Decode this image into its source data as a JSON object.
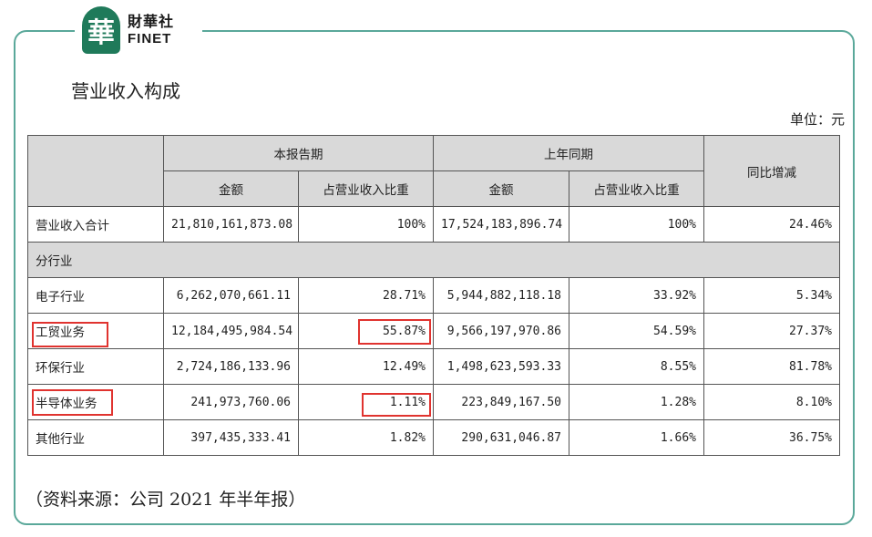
{
  "brand": {
    "mark": "華",
    "name_cn": "財華社",
    "name_en": "FINET"
  },
  "title": "营业收入构成",
  "unit": "单位：元",
  "table": {
    "group_current": "本报告期",
    "group_prior": "上年同期",
    "col_yoy": "同比增减",
    "col_amount_current": "金额",
    "col_share_current": "占营业收入比重",
    "col_amount_prior": "金额",
    "col_share_prior": "占营业收入比重",
    "total": {
      "name": "营业收入合计",
      "amount_current": "21,810,161,873.08",
      "share_current": "100%",
      "amount_prior": "17,524,183,896.74",
      "share_prior": "100%",
      "yoy": "24.46%"
    },
    "section_label": "分行业",
    "rows": [
      {
        "name": "电子行业",
        "amount_current": "6,262,070,661.11",
        "share_current": "28.71%",
        "amount_prior": "5,944,882,118.18",
        "share_prior": "33.92%",
        "yoy": "5.34%"
      },
      {
        "name": "工贸业务",
        "amount_current": "12,184,495,984.54",
        "share_current": "55.87%",
        "amount_prior": "9,566,197,970.86",
        "share_prior": "54.59%",
        "yoy": "27.37%"
      },
      {
        "name": "环保行业",
        "amount_current": "2,724,186,133.96",
        "share_current": "12.49%",
        "amount_prior": "1,498,623,593.33",
        "share_prior": "8.55%",
        "yoy": "81.78%"
      },
      {
        "name": "半导体业务",
        "amount_current": "241,973,760.06",
        "share_current": "1.11%",
        "amount_prior": "223,849,167.50",
        "share_prior": "1.28%",
        "yoy": "8.10%"
      },
      {
        "name": "其他行业",
        "amount_current": "397,435,333.41",
        "share_current": "1.82%",
        "amount_prior": "290,631,046.87",
        "share_prior": "1.66%",
        "yoy": "36.75%"
      }
    ]
  },
  "source": "（资料来源：公司 2021 年半年报）",
  "highlight_color": "#e0332f",
  "frame_color": "#5aa89a"
}
